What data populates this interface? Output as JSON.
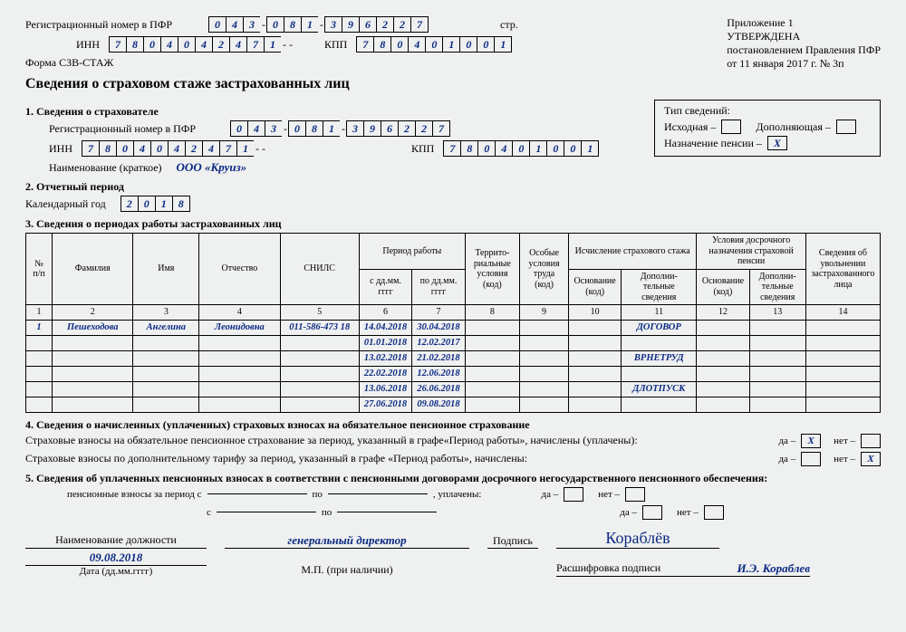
{
  "header": {
    "reg_label": "Регистрационный номер в ПФР",
    "reg_cells": [
      "0",
      "4",
      "3",
      "-",
      "0",
      "8",
      "1",
      "-",
      "3",
      "9",
      "6",
      "2",
      "2",
      "7"
    ],
    "str_label": "стр.",
    "prilozhenie": "Приложение 1",
    "utv": "УТВЕРЖДЕНА",
    "post": "постановлением Правления ПФР",
    "date_ref": "от 11 января 2017 г. № 3п",
    "inn_label": "ИНН",
    "inn_cells": [
      "7",
      "8",
      "0",
      "4",
      "0",
      "4",
      "2",
      "4",
      "7",
      "1",
      "-",
      "-"
    ],
    "kpp_label": "КПП",
    "kpp_cells": [
      "7",
      "8",
      "0",
      "4",
      "0",
      "1",
      "0",
      "0",
      "1"
    ],
    "form": "Форма СЗВ-СТАЖ",
    "title": "Сведения о страховом стаже застрахованных лиц"
  },
  "s1": {
    "title": "1. Сведения о страхователе",
    "reg_label": "Регистрационный номер в ПФР",
    "reg_cells": [
      "0",
      "4",
      "3",
      "-",
      "0",
      "8",
      "1",
      "-",
      "3",
      "9",
      "6",
      "2",
      "2",
      "7"
    ],
    "inn_label": "ИНН",
    "inn_cells": [
      "7",
      "8",
      "0",
      "4",
      "0",
      "4",
      "2",
      "4",
      "7",
      "1",
      "-",
      "-"
    ],
    "kpp_label": "КПП",
    "kpp_cells": [
      "7",
      "8",
      "0",
      "4",
      "0",
      "1",
      "0",
      "0",
      "1"
    ],
    "name_label": "Наименование (краткое)",
    "name_value": "ООО «Круиз»"
  },
  "tip": {
    "title": "Тип сведений:",
    "ish": "Исходная –",
    "dop": "Дополняющая –",
    "naz": "Назначение пенсии –",
    "naz_val": "X"
  },
  "s2": {
    "title": "2. Отчетный период",
    "label": "Календарный год",
    "cells": [
      "2",
      "0",
      "1",
      "8"
    ]
  },
  "s3": {
    "title": "3. Сведения о периодах работы застрахованных лиц",
    "cols": {
      "npp": "№ п/п",
      "fam": "Фамилия",
      "imya": "Имя",
      "otch": "Отчество",
      "snils": "СНИЛС",
      "period": "Период работы",
      "from": "с дд.мм. гггг",
      "to": "по дд.мм. гггг",
      "terr": "Террито-риальные условия (код)",
      "osob": "Особые условия труда (код)",
      "isch": "Исчисление страхового стажа",
      "osn": "Основание (код)",
      "dopinfo": "Дополни-тельные сведения",
      "dosr": "Условия досрочного назначения страховой пенсии",
      "dosr_osn": "Основание (код)",
      "dosr_dop": "Дополни-тельные сведения",
      "uvol": "Сведения об увольнении застрахованного лица"
    },
    "numrow": [
      "1",
      "2",
      "3",
      "4",
      "5",
      "6",
      "7",
      "8",
      "9",
      "10",
      "11",
      "12",
      "13",
      "14"
    ],
    "rows": [
      {
        "n": "1",
        "fam": "Пешеходова",
        "imya": "Ангелина",
        "otch": "Леонидовна",
        "snils": "011-586-473 18",
        "from": "14.04.2018",
        "to": "30.04.2018",
        "dop": "ДОГОВОР"
      },
      {
        "from": "01.01.2018",
        "to": "12.02.2017"
      },
      {
        "from": "13.02.2018",
        "to": "21.02.2018",
        "dop": "ВРНЕТРУД"
      },
      {
        "from": "22.02.2018",
        "to": "12.06.2018"
      },
      {
        "from": "13.06.2018",
        "to": "26.06.2018",
        "dop": "ДЛОТПУСК"
      },
      {
        "from": "27.06.2018",
        "to": "09.08.2018"
      }
    ]
  },
  "s4": {
    "title": "4. Сведения о начисленных (уплаченных) страховых взносах на обязательное пенсионное страхование",
    "line1": "Страховые взносы на обязательное пенсионное страхование за период, указанный в графе«Период работы», начислены (уплачены):",
    "line2": "Страховые взносы по дополнительному тарифу за период, указанный в графе «Период работы», начислены:",
    "da": "да –",
    "net": "нет –",
    "line1_val_da": "X",
    "line2_val_net": "X"
  },
  "s5": {
    "title": "5. Сведения об уплаченных пенсионных взносах в соответствии с пенсионными договорами досрочного негосударственного пенсионного обеспечения:",
    "l1a": "пенсионные взносы за период с",
    "po": "по",
    "upl": ", уплачены:",
    "s": "с",
    "da": "да –",
    "net": "нет –"
  },
  "footer": {
    "dolzh_label": "Наименование должности",
    "dolzh_val": "генеральный директор",
    "podpis_label": "Подпись",
    "sig": "Кораблёв",
    "rasshifrovka_label": "Расшифровка подписи",
    "rasshifrovka_val": "И.Э. Кораблев",
    "date_val": "09.08.2018",
    "date_label": "Дата (дд.мм.гггг)",
    "mp": "М.П. (при наличии)"
  }
}
